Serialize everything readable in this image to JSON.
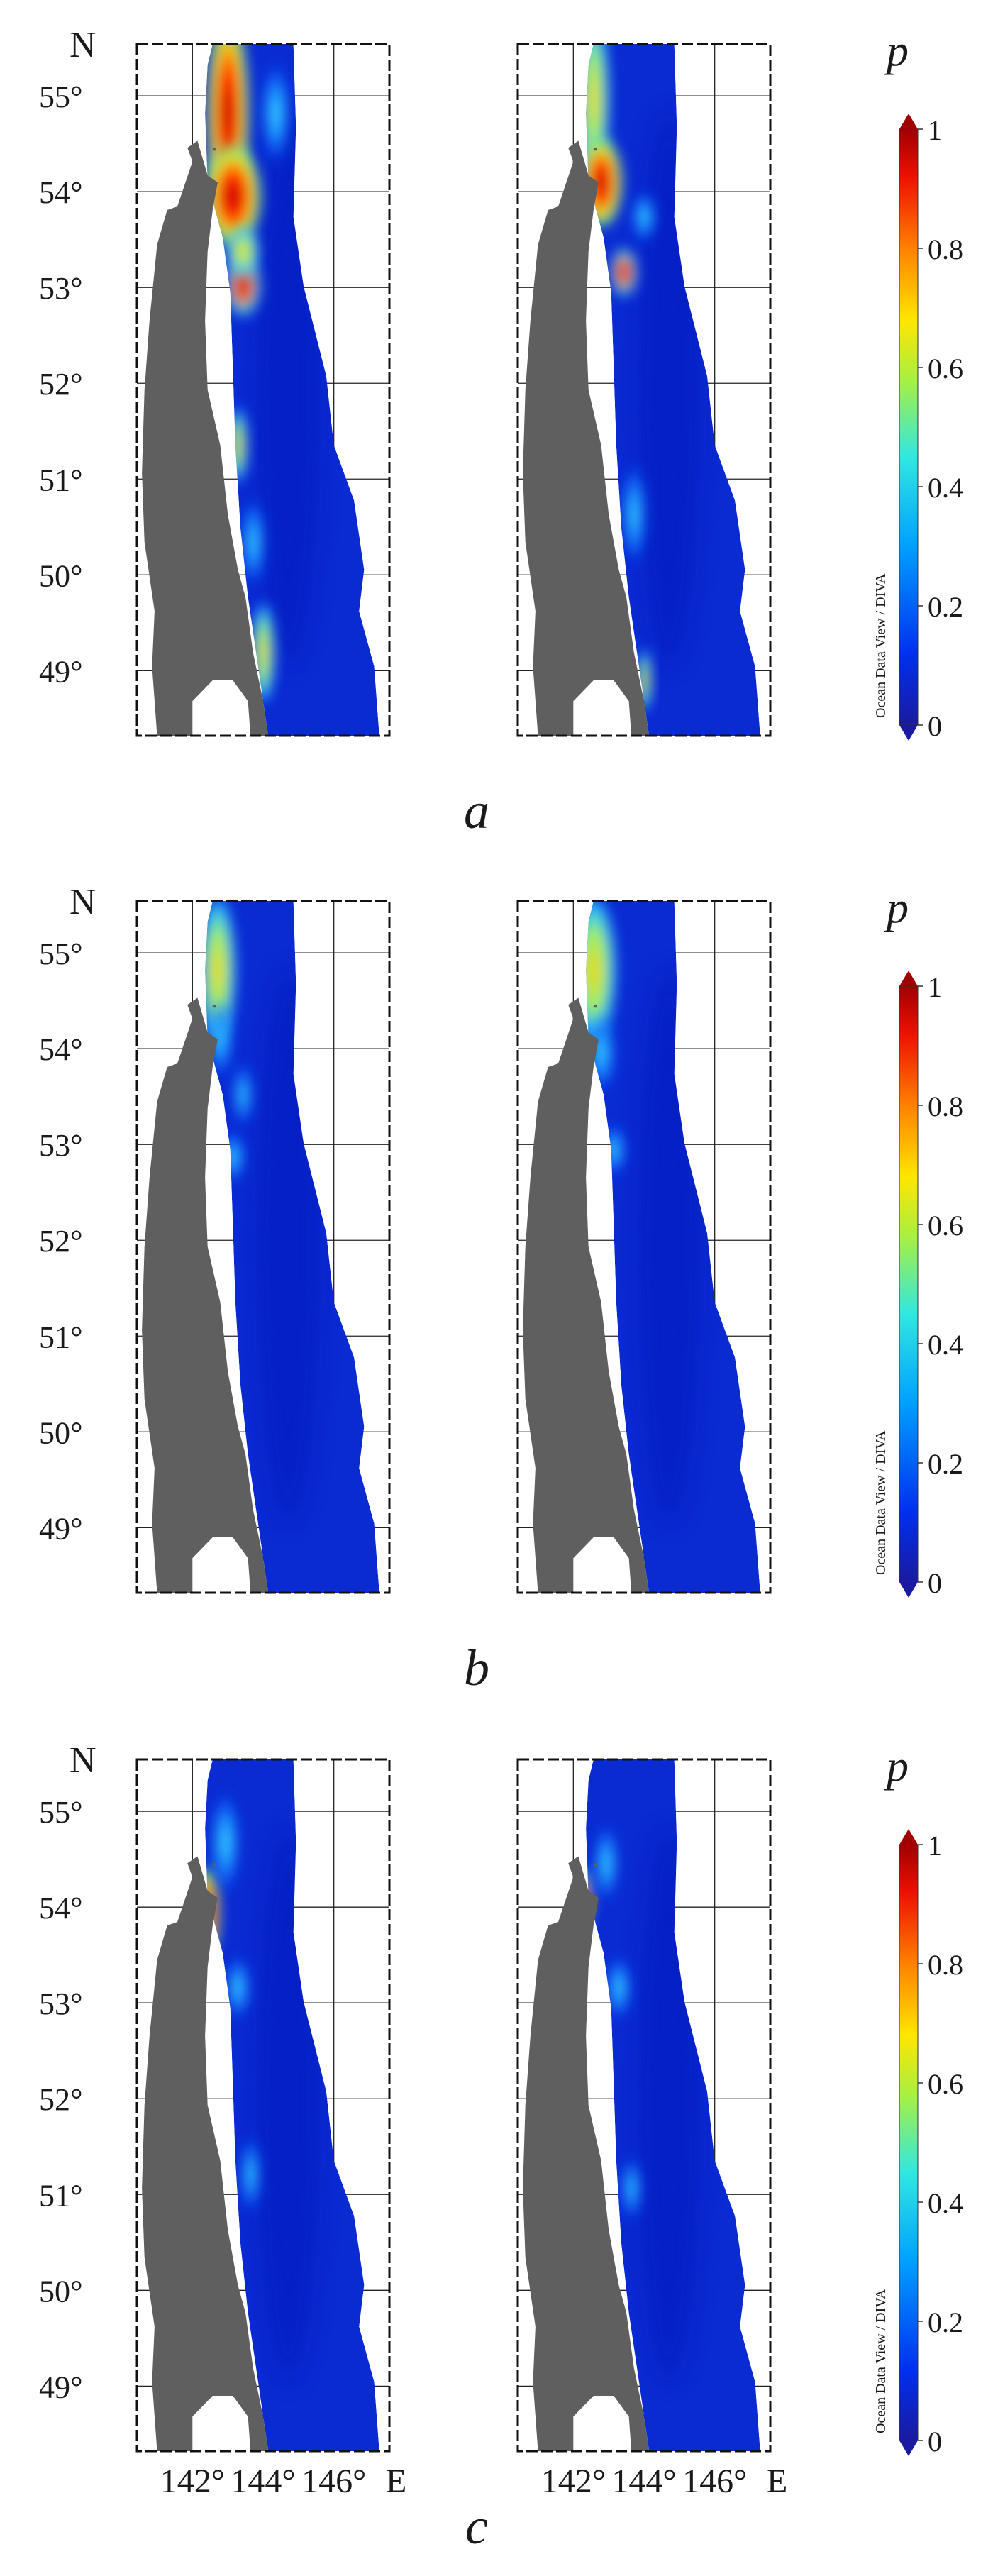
{
  "lat_labels": [
    "55°",
    "54°",
    "53°",
    "52°",
    "51°",
    "50°",
    "49°"
  ],
  "lon_labels": [
    "142°",
    "144°",
    "146°"
  ],
  "north_label": "N",
  "east_label": "E",
  "colorbar": {
    "symbol": "p",
    "ticks": [
      "1",
      "0.8",
      "0.6",
      "0.4",
      "0.2",
      "0"
    ],
    "credit": "Ocean Data View / DIVA"
  },
  "panels": [
    {
      "label": "a"
    },
    {
      "label": "b"
    },
    {
      "label": "c"
    }
  ],
  "colors": {
    "land": "#5f5f5f",
    "sea_low": "#0a2ad2",
    "high": "#a80000"
  }
}
